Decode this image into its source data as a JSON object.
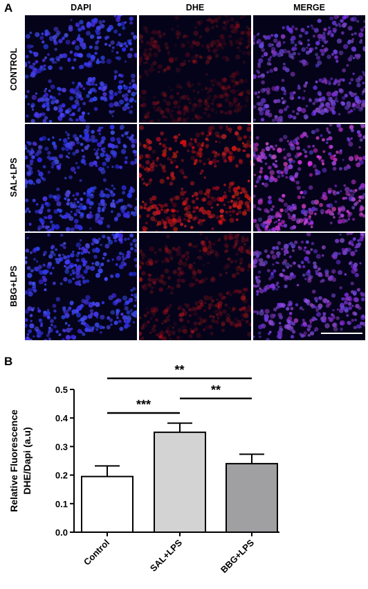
{
  "panel_a": {
    "letter": "A",
    "columns": [
      "DAPI",
      "DHE",
      "MERGE"
    ],
    "rows": [
      "CONTROL",
      "SAL+LPS",
      "BBG+LPS"
    ]
  },
  "panel_b": {
    "letter": "B"
  },
  "chart_data": {
    "type": "bar",
    "categories": [
      "Control",
      "SAL+LPS",
      "BBG+LPS"
    ],
    "values": [
      0.195,
      0.35,
      0.24
    ],
    "errors": [
      0.037,
      0.032,
      0.033
    ],
    "bar_colors": [
      "#ffffff",
      "#d3d3d3",
      "#a0a0a3"
    ],
    "ylabel": "Relative Fluorescence\nDHE/Dapi (a.u)",
    "ylim": [
      0,
      0.5
    ],
    "yticks": [
      0.0,
      0.1,
      0.2,
      0.3,
      0.4,
      0.5
    ],
    "ytick_labels": [
      "0.0",
      "0.1",
      "0.2",
      "0.3",
      "0.4",
      "0.5"
    ],
    "significance": [
      {
        "from": "Control",
        "to": "BBG+LPS",
        "label": "**"
      },
      {
        "from": "Control",
        "to": "SAL+LPS",
        "label": "***"
      },
      {
        "from": "SAL+LPS",
        "to": "BBG+LPS",
        "label": "**"
      }
    ]
  }
}
